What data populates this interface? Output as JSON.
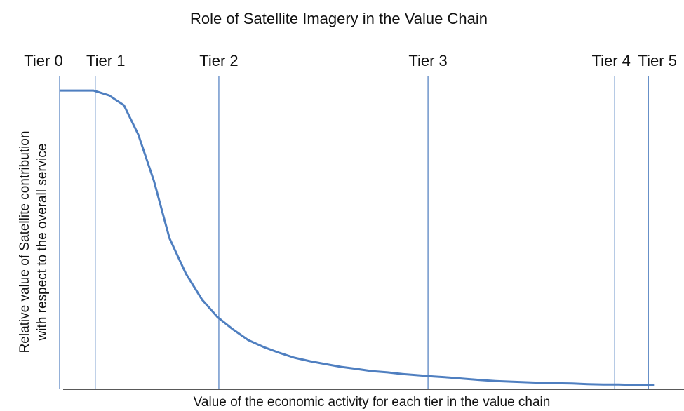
{
  "chart_data": {
    "type": "line",
    "title": "Role of Satellite Imagery in the Value Chain",
    "x_label": "Value of the economic activity for each  tier in the value chain",
    "y_label": [
      "Relative value of Satellite contribution",
      "with respect to the overall service"
    ],
    "tiers": [
      {
        "label": "Tier 0",
        "x": 0
      },
      {
        "label": "Tier 1",
        "x": 5.7
      },
      {
        "label": "Tier 2",
        "x": 25.5
      },
      {
        "label": "Tier 3",
        "x": 59.0
      },
      {
        "label": "Tier 4",
        "x": 88.9
      },
      {
        "label": "Tier 5",
        "x": 94.3
      }
    ],
    "color": "#4f7fc0",
    "tier_color": "#5a86c4",
    "x": [
      0,
      5.4,
      7.9,
      10.3,
      12.6,
      15.1,
      17.6,
      20.2,
      22.8,
      25.3,
      27.8,
      30.2,
      32.7,
      35.2,
      37.6,
      40.1,
      42.6,
      45.1,
      47.5,
      50.0,
      52.5,
      54.9,
      57.4,
      59.9,
      62.4,
      64.8,
      67.3,
      69.8,
      72.2,
      74.7,
      77.2,
      79.7,
      82.1,
      84.6,
      87.1,
      89.6,
      92.0,
      95.2
    ],
    "values": [
      93.6,
      93.6,
      92.1,
      89.0,
      79.8,
      65.3,
      47.3,
      36.3,
      28.1,
      22.6,
      18.7,
      15.4,
      13.2,
      11.4,
      9.9,
      8.8,
      7.9,
      7.0,
      6.4,
      5.7,
      5.3,
      4.8,
      4.4,
      4.0,
      3.7,
      3.3,
      2.9,
      2.6,
      2.4,
      2.2,
      2.0,
      1.9,
      1.8,
      1.6,
      1.5,
      1.5,
      1.3,
      1.3
    ],
    "xlim": [
      0,
      100
    ],
    "ylim": [
      0,
      100
    ]
  }
}
